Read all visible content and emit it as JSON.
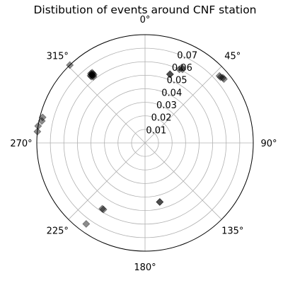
{
  "chart_data": {
    "type": "scatter",
    "projection": "polar",
    "title": "Distibution of events around CNF station",
    "theta_zero_location": "N",
    "theta_direction": "clockwise",
    "theta_ticks": [
      "0°",
      "45°",
      "90°",
      "135°",
      "180°",
      "225°",
      "270°",
      "315°"
    ],
    "r_ticks": [
      "0.01",
      "0.02",
      "0.03",
      "0.04",
      "0.05",
      "0.06",
      "0.07"
    ],
    "rlim": [
      0,
      0.08
    ],
    "grid": true,
    "marker": "diamond",
    "marker_color": "#000000",
    "marker_alpha": 0.45,
    "points": [
      {
        "theta_deg": 20,
        "r": 0.054
      },
      {
        "theta_deg": 20,
        "r": 0.054
      },
      {
        "theta_deg": 26,
        "r": 0.062
      },
      {
        "theta_deg": 27,
        "r": 0.061
      },
      {
        "theta_deg": 25,
        "r": 0.06
      },
      {
        "theta_deg": 49,
        "r": 0.074
      },
      {
        "theta_deg": 50,
        "r": 0.075
      },
      {
        "theta_deg": 51,
        "r": 0.075
      },
      {
        "theta_deg": 48,
        "r": 0.074
      },
      {
        "theta_deg": 323,
        "r": 0.064
      },
      {
        "theta_deg": 322,
        "r": 0.064
      },
      {
        "theta_deg": 322,
        "r": 0.063
      },
      {
        "theta_deg": 321,
        "r": 0.063
      },
      {
        "theta_deg": 323,
        "r": 0.063
      },
      {
        "theta_deg": 322,
        "r": 0.065
      },
      {
        "theta_deg": 321,
        "r": 0.064
      },
      {
        "theta_deg": 323,
        "r": 0.065
      },
      {
        "theta_deg": 322,
        "r": 0.064
      },
      {
        "theta_deg": 322,
        "r": 0.062
      },
      {
        "theta_deg": 316,
        "r": 0.08
      },
      {
        "theta_deg": 282,
        "r": 0.078
      },
      {
        "theta_deg": 284,
        "r": 0.078
      },
      {
        "theta_deg": 279,
        "r": 0.08
      },
      {
        "theta_deg": 276,
        "r": 0.08
      },
      {
        "theta_deg": 216,
        "r": 0.074
      },
      {
        "theta_deg": 212,
        "r": 0.058
      },
      {
        "theta_deg": 213,
        "r": 0.058
      },
      {
        "theta_deg": 166,
        "r": 0.045
      },
      {
        "theta_deg": 166,
        "r": 0.045
      }
    ]
  }
}
